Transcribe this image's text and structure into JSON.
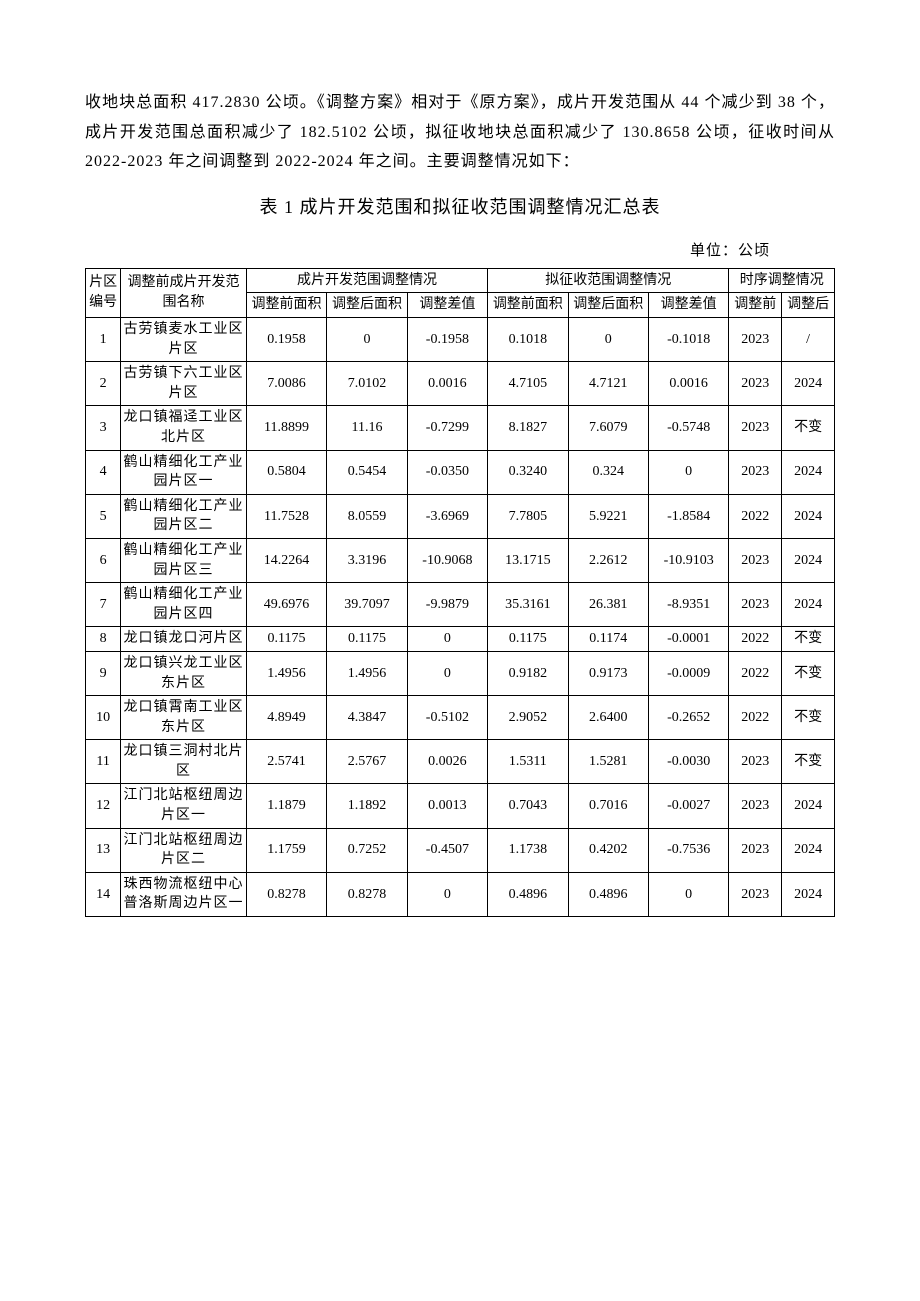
{
  "intro": "收地块总面积 417.2830 公顷。《调整方案》相对于《原方案》，成片开发范围从 44 个减少到 38 个，成片开发范围总面积减少了 182.5102 公顷，拟征收地块总面积减少了 130.8658 公顷，征收时间从 2022-2023 年之间调整到 2022-2024 年之间。主要调整情况如下：",
  "title": "表 1 成片开发范围和拟征收范围调整情况汇总表",
  "unit": "单位：公顷",
  "headers": {
    "col_id": "片区编号",
    "col_name": "调整前成片开发范围名称",
    "group_dev": "成片开发范围调整情况",
    "group_req": "拟征收范围调整情况",
    "group_time": "时序调整情况",
    "before_area": "调整前面积",
    "after_area": "调整后面积",
    "diff": "调整差值",
    "time_before": "调整前",
    "time_after": "调整后"
  },
  "rows": [
    {
      "id": "1",
      "name": "古劳镇麦水工业区片区",
      "db": "0.1958",
      "da": "0",
      "dd": "-0.1958",
      "rb": "0.1018",
      "ra": "0",
      "rd": "-0.1018",
      "tb": "2023",
      "ta": "/"
    },
    {
      "id": "2",
      "name": "古劳镇下六工业区片区",
      "db": "7.0086",
      "da": "7.0102",
      "dd": "0.0016",
      "rb": "4.7105",
      "ra": "4.7121",
      "rd": "0.0016",
      "tb": "2023",
      "ta": "2024"
    },
    {
      "id": "3",
      "name": "龙口镇福迳工业区北片区",
      "db": "11.8899",
      "da": "11.16",
      "dd": "-0.7299",
      "rb": "8.1827",
      "ra": "7.6079",
      "rd": "-0.5748",
      "tb": "2023",
      "ta": "不变"
    },
    {
      "id": "4",
      "name": "鹤山精细化工产业园片区一",
      "db": "0.5804",
      "da": "0.5454",
      "dd": "-0.0350",
      "rb": "0.3240",
      "ra": "0.324",
      "rd": "0",
      "tb": "2023",
      "ta": "2024"
    },
    {
      "id": "5",
      "name": "鹤山精细化工产业园片区二",
      "db": "11.7528",
      "da": "8.0559",
      "dd": "-3.6969",
      "rb": "7.7805",
      "ra": "5.9221",
      "rd": "-1.8584",
      "tb": "2022",
      "ta": "2024"
    },
    {
      "id": "6",
      "name": "鹤山精细化工产业园片区三",
      "db": "14.2264",
      "da": "3.3196",
      "dd": "-10.9068",
      "rb": "13.1715",
      "ra": "2.2612",
      "rd": "-10.9103",
      "tb": "2023",
      "ta": "2024"
    },
    {
      "id": "7",
      "name": "鹤山精细化工产业园片区四",
      "db": "49.6976",
      "da": "39.7097",
      "dd": "-9.9879",
      "rb": "35.3161",
      "ra": "26.381",
      "rd": "-8.9351",
      "tb": "2023",
      "ta": "2024"
    },
    {
      "id": "8",
      "name": "龙口镇龙口河片区",
      "db": "0.1175",
      "da": "0.1175",
      "dd": "0",
      "rb": "0.1175",
      "ra": "0.1174",
      "rd": "-0.0001",
      "tb": "2022",
      "ta": "不变"
    },
    {
      "id": "9",
      "name": "龙口镇兴龙工业区东片区",
      "db": "1.4956",
      "da": "1.4956",
      "dd": "0",
      "rb": "0.9182",
      "ra": "0.9173",
      "rd": "-0.0009",
      "tb": "2022",
      "ta": "不变"
    },
    {
      "id": "10",
      "name": "龙口镇霄南工业区东片区",
      "db": "4.8949",
      "da": "4.3847",
      "dd": "-0.5102",
      "rb": "2.9052",
      "ra": "2.6400",
      "rd": "-0.2652",
      "tb": "2022",
      "ta": "不变"
    },
    {
      "id": "11",
      "name": "龙口镇三洞村北片区",
      "db": "2.5741",
      "da": "2.5767",
      "dd": "0.0026",
      "rb": "1.5311",
      "ra": "1.5281",
      "rd": "-0.0030",
      "tb": "2023",
      "ta": "不变"
    },
    {
      "id": "12",
      "name": "江门北站枢纽周边片区一",
      "db": "1.1879",
      "da": "1.1892",
      "dd": "0.0013",
      "rb": "0.7043",
      "ra": "0.7016",
      "rd": "-0.0027",
      "tb": "2023",
      "ta": "2024"
    },
    {
      "id": "13",
      "name": "江门北站枢纽周边片区二",
      "db": "1.1759",
      "da": "0.7252",
      "dd": "-0.4507",
      "rb": "1.1738",
      "ra": "0.4202",
      "rd": "-0.7536",
      "tb": "2023",
      "ta": "2024"
    },
    {
      "id": "14",
      "name": "珠西物流枢纽中心普洛斯周边片区一",
      "db": "0.8278",
      "da": "0.8278",
      "dd": "0",
      "rb": "0.4896",
      "ra": "0.4896",
      "rd": "0",
      "tb": "2023",
      "ta": "2024"
    }
  ]
}
